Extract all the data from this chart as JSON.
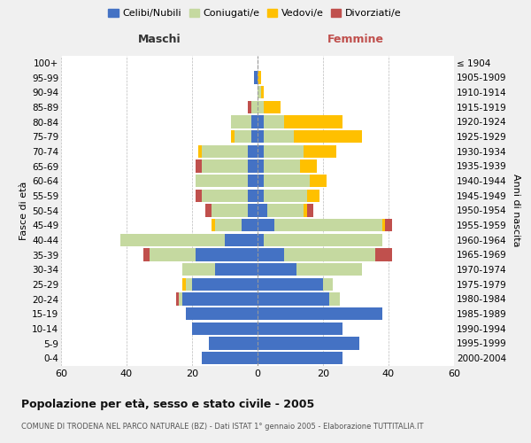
{
  "age_groups": [
    "0-4",
    "5-9",
    "10-14",
    "15-19",
    "20-24",
    "25-29",
    "30-34",
    "35-39",
    "40-44",
    "45-49",
    "50-54",
    "55-59",
    "60-64",
    "65-69",
    "70-74",
    "75-79",
    "80-84",
    "85-89",
    "90-94",
    "95-99",
    "100+"
  ],
  "birth_years": [
    "2000-2004",
    "1995-1999",
    "1990-1994",
    "1985-1989",
    "1980-1984",
    "1975-1979",
    "1970-1974",
    "1965-1969",
    "1960-1964",
    "1955-1959",
    "1950-1954",
    "1945-1949",
    "1940-1944",
    "1935-1939",
    "1930-1934",
    "1925-1929",
    "1920-1924",
    "1915-1919",
    "1910-1914",
    "1905-1909",
    "≤ 1904"
  ],
  "males": {
    "celibi": [
      17,
      15,
      20,
      22,
      23,
      20,
      13,
      19,
      10,
      5,
      3,
      3,
      3,
      3,
      3,
      2,
      2,
      0,
      0,
      1,
      0
    ],
    "coniugati": [
      0,
      0,
      0,
      0,
      1,
      2,
      10,
      14,
      32,
      8,
      11,
      14,
      16,
      14,
      14,
      5,
      6,
      2,
      0,
      0,
      0
    ],
    "vedovi": [
      0,
      0,
      0,
      0,
      0,
      1,
      0,
      0,
      0,
      1,
      0,
      0,
      0,
      0,
      1,
      1,
      0,
      0,
      0,
      0,
      0
    ],
    "divorziati": [
      0,
      0,
      0,
      0,
      1,
      0,
      0,
      2,
      0,
      0,
      2,
      2,
      0,
      2,
      0,
      0,
      0,
      1,
      0,
      0,
      0
    ]
  },
  "females": {
    "nubili": [
      26,
      31,
      26,
      38,
      22,
      20,
      12,
      8,
      2,
      5,
      3,
      2,
      2,
      2,
      2,
      2,
      2,
      0,
      0,
      0,
      0
    ],
    "coniugate": [
      0,
      0,
      0,
      0,
      3,
      3,
      20,
      28,
      36,
      33,
      11,
      13,
      14,
      11,
      12,
      9,
      6,
      2,
      1,
      0,
      0
    ],
    "vedove": [
      0,
      0,
      0,
      0,
      0,
      0,
      0,
      0,
      0,
      1,
      1,
      4,
      5,
      5,
      10,
      21,
      18,
      5,
      1,
      1,
      0
    ],
    "divorziate": [
      0,
      0,
      0,
      0,
      0,
      0,
      0,
      5,
      0,
      2,
      2,
      0,
      0,
      0,
      0,
      0,
      0,
      0,
      0,
      0,
      0
    ]
  },
  "colors": {
    "celibi": "#4472c4",
    "coniugati": "#c5d9a0",
    "vedovi": "#ffc000",
    "divorziati": "#c0504d"
  },
  "title": "Popolazione per età, sesso e stato civile - 2005",
  "subtitle": "COMUNE DI TRODENA NEL PARCO NATURALE (BZ) - Dati ISTAT 1° gennaio 2005 - Elaborazione TUTTITALIA.IT",
  "xlabel_left": "Maschi",
  "xlabel_right": "Femmine",
  "ylabel_left": "Fasce di età",
  "ylabel_right": "Anni di nascita",
  "xlim": 60,
  "bg_color": "#f0f0f0",
  "plot_bg_color": "#ffffff",
  "legend_labels": [
    "Celibi/Nubili",
    "Coniugati/e",
    "Vedovi/e",
    "Divorziati/e"
  ]
}
